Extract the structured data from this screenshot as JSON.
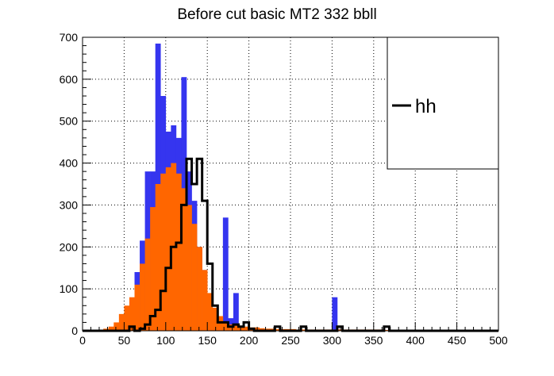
{
  "chart_data": {
    "type": "bar",
    "title": "Before cut basic MT2 332 bbll",
    "xlabel": "",
    "ylabel": "",
    "xlim": [
      0,
      500
    ],
    "ylim": [
      0,
      700
    ],
    "bin_width": 6.25,
    "grid": true,
    "x_ticks": [
      0,
      50,
      100,
      150,
      200,
      250,
      300,
      350,
      400,
      450,
      500
    ],
    "y_ticks": [
      0,
      100,
      200,
      300,
      400,
      500,
      600,
      700
    ],
    "legend": {
      "position": "top-right",
      "entries": [
        "hh"
      ]
    },
    "series": [
      {
        "color": "#3535ef",
        "style": "filled",
        "values": [
          0,
          0,
          0,
          0,
          0,
          0,
          0,
          2,
          10,
          35,
          140,
          215,
          380,
          380,
          685,
          560,
          475,
          490,
          460,
          605,
          380,
          310,
          200,
          145,
          80,
          40,
          20,
          270,
          30,
          90,
          10,
          8,
          6,
          5,
          4,
          4,
          3,
          3,
          2,
          3,
          2,
          2,
          2,
          2,
          2,
          2,
          2,
          2,
          80,
          3,
          2,
          2,
          2,
          2,
          2,
          2,
          2,
          2,
          2,
          2,
          2,
          2,
          2,
          2,
          1,
          1,
          1,
          1,
          1,
          1,
          1,
          1,
          1,
          1,
          1,
          1,
          1,
          1,
          1,
          1
        ]
      },
      {
        "color": "#ff6600",
        "style": "filled",
        "values": [
          0,
          0,
          0,
          2,
          5,
          10,
          20,
          40,
          60,
          80,
          110,
          160,
          220,
          295,
          350,
          375,
          390,
          400,
          375,
          340,
          300,
          255,
          200,
          145,
          90,
          55,
          35,
          20,
          15,
          12,
          12,
          10,
          8,
          8,
          6,
          5,
          5,
          4,
          4,
          4,
          4,
          3,
          3,
          3,
          3,
          3,
          3,
          3,
          3,
          3,
          3,
          3,
          3,
          3,
          3,
          3,
          3,
          3,
          2,
          2,
          2,
          2,
          2,
          2,
          2,
          2,
          2,
          1,
          1,
          1,
          1,
          1,
          1,
          1,
          1,
          1,
          1,
          1,
          1,
          1
        ]
      },
      {
        "color": "#000000",
        "style": "step",
        "name": "hh",
        "values": [
          0,
          0,
          0,
          0,
          0,
          0,
          0,
          0,
          0,
          10,
          0,
          5,
          15,
          35,
          50,
          95,
          150,
          200,
          210,
          300,
          410,
          350,
          410,
          310,
          160,
          60,
          20,
          20,
          10,
          15,
          10,
          20,
          5,
          0,
          0,
          0,
          0,
          10,
          0,
          0,
          0,
          0,
          10,
          0,
          0,
          0,
          0,
          0,
          0,
          10,
          0,
          0,
          0,
          0,
          0,
          0,
          0,
          0,
          10,
          0,
          0,
          0,
          0,
          0,
          0,
          0,
          0,
          0,
          0,
          0,
          0,
          0,
          0,
          0,
          0,
          0,
          0,
          0,
          0,
          0
        ]
      }
    ]
  }
}
